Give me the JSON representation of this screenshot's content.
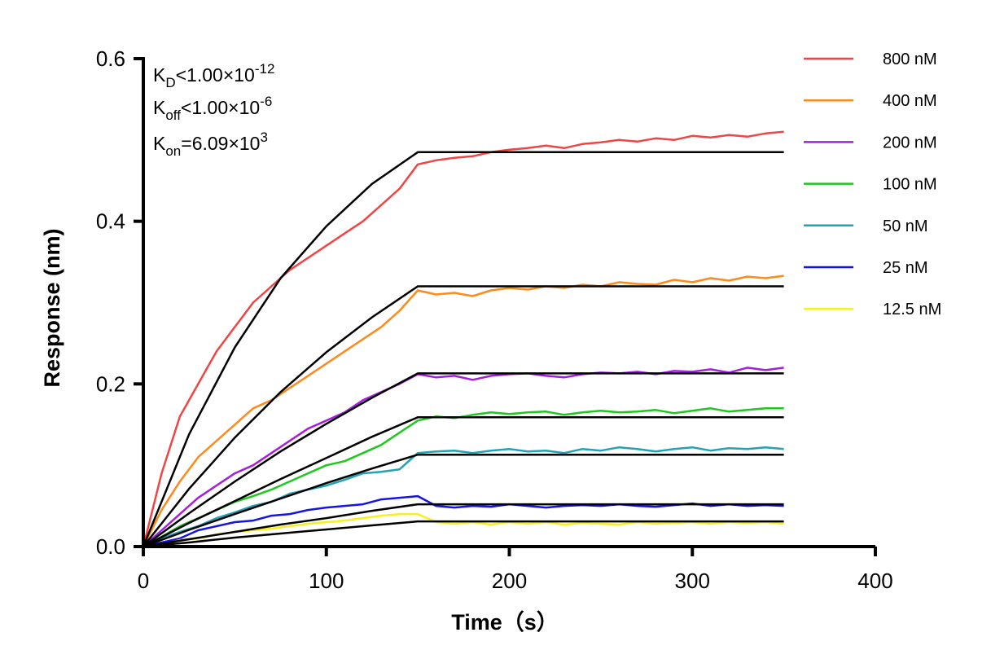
{
  "chart_data": {
    "type": "line",
    "xlabel": "Time（s）",
    "ylabel": "Response (nm)",
    "xlim": [
      0,
      400
    ],
    "ylim": [
      0,
      0.6
    ],
    "xticks": [
      "0",
      "100",
      "200",
      "300",
      "400"
    ],
    "yticks": [
      "0.0",
      "0.2",
      "0.4",
      "0.6"
    ],
    "grid": false,
    "legend_position": "right",
    "annotations": [
      {
        "main": "K",
        "sub": "D",
        "rest": "<1.00×10",
        "sup": "-12"
      },
      {
        "main": "K",
        "sub": "off",
        "rest": "<1.00×10",
        "sup": "-6"
      },
      {
        "main": "K",
        "sub": "on",
        "rest": "=6.09×10",
        "sup": "3"
      }
    ],
    "raw_x": [
      0,
      10,
      20,
      30,
      40,
      50,
      60,
      70,
      80,
      90,
      100,
      110,
      120,
      130,
      140,
      150,
      160,
      170,
      180,
      190,
      200,
      210,
      220,
      230,
      240,
      250,
      260,
      270,
      280,
      290,
      300,
      310,
      320,
      330,
      340,
      350
    ],
    "fit_x": [
      0,
      25,
      50,
      75,
      100,
      125,
      150,
      350
    ],
    "series": [
      {
        "name": "800 nM",
        "color": "#f04545",
        "values": [
          0,
          0.09,
          0.16,
          0.2,
          0.24,
          0.27,
          0.3,
          0.32,
          0.34,
          0.355,
          0.37,
          0.385,
          0.4,
          0.42,
          0.44,
          0.47,
          0.475,
          0.478,
          0.48,
          0.485,
          0.488,
          0.49,
          0.493,
          0.49,
          0.495,
          0.497,
          0.5,
          0.498,
          0.502,
          0.5,
          0.505,
          0.503,
          0.506,
          0.504,
          0.508,
          0.51
        ],
        "fit": [
          0,
          0.138,
          0.245,
          0.33,
          0.394,
          0.446,
          0.485,
          0.485
        ]
      },
      {
        "name": "400 nM",
        "color": "#ff8a1c",
        "values": [
          0,
          0.045,
          0.08,
          0.11,
          0.13,
          0.15,
          0.17,
          0.18,
          0.195,
          0.21,
          0.225,
          0.24,
          0.255,
          0.27,
          0.29,
          0.315,
          0.31,
          0.312,
          0.308,
          0.315,
          0.318,
          0.316,
          0.32,
          0.318,
          0.322,
          0.32,
          0.325,
          0.323,
          0.322,
          0.328,
          0.325,
          0.33,
          0.327,
          0.332,
          0.33,
          0.333
        ],
        "fit": [
          0,
          0.071,
          0.134,
          0.19,
          0.239,
          0.282,
          0.32,
          0.32
        ]
      },
      {
        "name": "200 nM",
        "color": "#a51ee0",
        "values": [
          0,
          0.02,
          0.04,
          0.06,
          0.075,
          0.09,
          0.1,
          0.115,
          0.13,
          0.145,
          0.155,
          0.165,
          0.18,
          0.19,
          0.2,
          0.212,
          0.208,
          0.21,
          0.205,
          0.21,
          0.212,
          0.213,
          0.21,
          0.208,
          0.212,
          0.214,
          0.213,
          0.215,
          0.212,
          0.216,
          0.215,
          0.218,
          0.214,
          0.22,
          0.217,
          0.22
        ],
        "fit": [
          0,
          0.041,
          0.08,
          0.117,
          0.151,
          0.183,
          0.213,
          0.213
        ]
      },
      {
        "name": "100 nM",
        "color": "#1ec81e",
        "values": [
          0,
          0.012,
          0.025,
          0.035,
          0.045,
          0.055,
          0.062,
          0.07,
          0.08,
          0.09,
          0.1,
          0.105,
          0.115,
          0.125,
          0.14,
          0.155,
          0.16,
          0.158,
          0.162,
          0.165,
          0.163,
          0.165,
          0.166,
          0.162,
          0.165,
          0.167,
          0.165,
          0.166,
          0.168,
          0.164,
          0.167,
          0.17,
          0.166,
          0.168,
          0.17,
          0.17
        ],
        "fit": [
          0,
          0.029,
          0.056,
          0.083,
          0.109,
          0.135,
          0.159,
          0.159
        ]
      },
      {
        "name": "50 nM",
        "color": "#1fa3b5",
        "values": [
          0,
          0.01,
          0.018,
          0.025,
          0.035,
          0.042,
          0.05,
          0.055,
          0.065,
          0.07,
          0.075,
          0.082,
          0.09,
          0.092,
          0.095,
          0.115,
          0.117,
          0.118,
          0.115,
          0.118,
          0.12,
          0.117,
          0.118,
          0.115,
          0.12,
          0.118,
          0.122,
          0.12,
          0.117,
          0.12,
          0.122,
          0.118,
          0.121,
          0.12,
          0.122,
          0.12
        ],
        "fit": [
          0,
          0.0205,
          0.04,
          0.059,
          0.078,
          0.096,
          0.113,
          0.113
        ]
      },
      {
        "name": "25 nM",
        "color": "#1414e6",
        "values": [
          0,
          0.005,
          0.01,
          0.02,
          0.025,
          0.03,
          0.032,
          0.038,
          0.04,
          0.045,
          0.048,
          0.05,
          0.052,
          0.058,
          0.06,
          0.062,
          0.05,
          0.048,
          0.05,
          0.049,
          0.052,
          0.05,
          0.048,
          0.05,
          0.051,
          0.05,
          0.052,
          0.05,
          0.049,
          0.051,
          0.053,
          0.05,
          0.052,
          0.05,
          0.051,
          0.05
        ],
        "fit": [
          0,
          0.009,
          0.018,
          0.027,
          0.035,
          0.044,
          0.052,
          0.052
        ]
      },
      {
        "name": "12.5 nM",
        "color": "#f5f01e",
        "values": [
          0,
          0.002,
          0.008,
          0.01,
          0.015,
          0.018,
          0.02,
          0.022,
          0.025,
          0.028,
          0.03,
          0.032,
          0.035,
          0.038,
          0.04,
          0.04,
          0.03,
          0.028,
          0.03,
          0.027,
          0.03,
          0.028,
          0.03,
          0.027,
          0.029,
          0.028,
          0.027,
          0.03,
          0.028,
          0.029,
          0.03,
          0.028,
          0.03,
          0.029,
          0.03,
          0.028
        ],
        "fit": [
          0,
          0.005,
          0.011,
          0.016,
          0.021,
          0.026,
          0.031,
          0.031
        ]
      }
    ]
  }
}
